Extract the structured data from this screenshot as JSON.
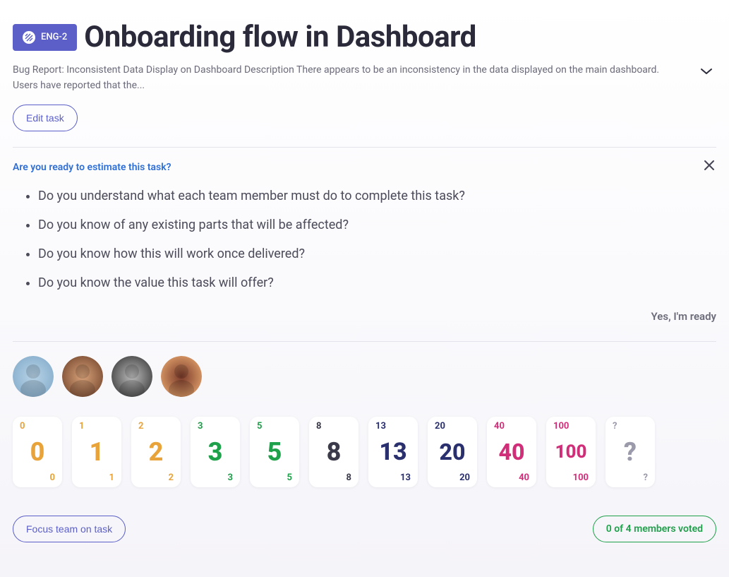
{
  "badge": {
    "id": "ENG-2"
  },
  "title": "Onboarding flow in Dashboard",
  "description": "Bug Report: Inconsistent Data Display on Dashboard Description There appears to be an inconsistency in the data displayed on the main dashboard. Users have reported that the...",
  "edit_button": "Edit task",
  "prompt": {
    "title": "Are you ready to estimate this task?",
    "questions": [
      "Do you understand what each team member must do to complete this task?",
      "Do you know of any existing parts that will be affected?",
      "Do you know how this will work once delivered?",
      "Do you know the value this task will offer?"
    ],
    "ready_label": "Yes, I'm ready"
  },
  "avatars": [
    {
      "bg": "#b8d4e8",
      "stops": [
        "#b8d4e8",
        "#8fb4d0"
      ]
    },
    {
      "bg": "#c98a5e",
      "stops": [
        "#d9a37a",
        "#8a5a3e"
      ]
    },
    {
      "bg": "#888888",
      "stops": [
        "#bbbbbb",
        "#555555"
      ]
    },
    {
      "bg": "#b37a4a",
      "stops": [
        "#7a3a2a",
        "#d09060"
      ]
    }
  ],
  "cards": [
    {
      "value": "0",
      "color": "#e8a33b",
      "font_size": 36
    },
    {
      "value": "1",
      "color": "#e8a33b",
      "font_size": 36
    },
    {
      "value": "2",
      "color": "#e8a33b",
      "font_size": 36
    },
    {
      "value": "3",
      "color": "#1fa04a",
      "font_size": 36
    },
    {
      "value": "5",
      "color": "#1fa04a",
      "font_size": 36
    },
    {
      "value": "8",
      "color": "#3a3a4a",
      "font_size": 36
    },
    {
      "value": "13",
      "color": "#2a2f6e",
      "font_size": 34
    },
    {
      "value": "20",
      "color": "#2a2f6e",
      "font_size": 32
    },
    {
      "value": "40",
      "color": "#d12e7a",
      "font_size": 32
    },
    {
      "value": "100",
      "color": "#d12e7a",
      "font_size": 26
    },
    {
      "value": "?",
      "color": "#9a9aaa",
      "font_size": 36
    }
  ],
  "footer": {
    "focus_label": "Focus team on task",
    "vote_status": "0 of 4 members voted"
  },
  "colors": {
    "badge_bg": "#5b5fc7",
    "primary": "#5b5fc7",
    "link": "#2e6fd6",
    "text_heading": "#2a2a3a",
    "text_muted": "#6b6b7a",
    "text_body": "#4b4b5a",
    "divider": "#e4e3ec",
    "green": "#1fa04a",
    "card_bg": "#ffffff"
  }
}
